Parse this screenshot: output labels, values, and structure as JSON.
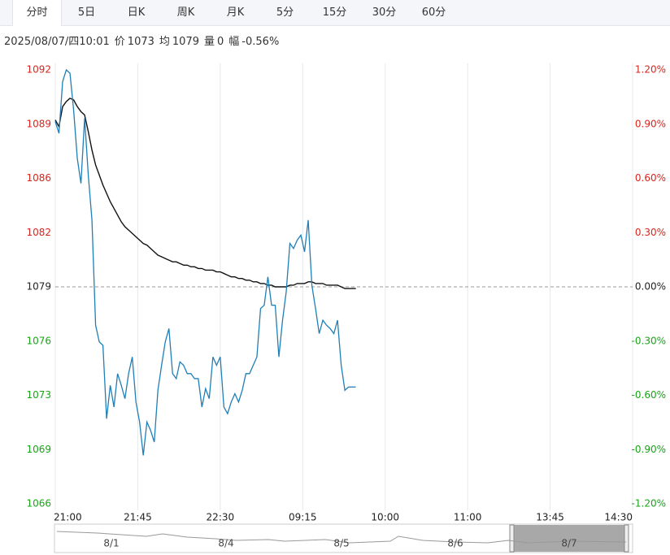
{
  "tabs": [
    "分时",
    "5日",
    "日K",
    "周K",
    "月K",
    "5分",
    "15分",
    "30分",
    "60分"
  ],
  "info": {
    "time": "2025/08/07/四10:01",
    "items": [
      {
        "label": "价",
        "value": 1073
      },
      {
        "label": "均",
        "value": 1079
      },
      {
        "label": "量",
        "value": 0
      },
      {
        "label": "幅",
        "value": "-0.56%"
      }
    ]
  },
  "chart_data": {
    "type": "line",
    "x": [
      0,
      2,
      4,
      6,
      8,
      10,
      12,
      14,
      16,
      18,
      20,
      22,
      24,
      26,
      28,
      30,
      32,
      34,
      36,
      38,
      40,
      42,
      44,
      46,
      48,
      50,
      52,
      54,
      56,
      58,
      60,
      62,
      64,
      66,
      68,
      70,
      72,
      74,
      76,
      78,
      80,
      82,
      84,
      86,
      88,
      90,
      92,
      94,
      96,
      98,
      100,
      102,
      104,
      106,
      108,
      110,
      112,
      114,
      116,
      118,
      120,
      122,
      124,
      126,
      128,
      130,
      132,
      134,
      136,
      138,
      140,
      142,
      144,
      146,
      148,
      150,
      152,
      154,
      156,
      158,
      160,
      162,
      164
    ],
    "series": [
      {
        "color": "#1f7fb6",
        "values": [
          1088.9,
          1088.2,
          1091.3,
          1092,
          1091.8,
          1089.6,
          1086.7,
          1085.2,
          1089.1,
          1085.7,
          1083,
          1076.7,
          1075.7,
          1075.5,
          1071.1,
          1073.1,
          1071.8,
          1073.8,
          1073.1,
          1072.3,
          1073.8,
          1074.8,
          1072.1,
          1070.9,
          1068.9,
          1070.9,
          1070.4,
          1069.7,
          1072.8,
          1074.3,
          1075.7,
          1076.5,
          1073.8,
          1073.5,
          1074.5,
          1074.3,
          1073.8,
          1073.8,
          1073.5,
          1073.5,
          1071.8,
          1072.9,
          1072.3,
          1074.8,
          1074.3,
          1074.8,
          1071.8,
          1071.4,
          1072.1,
          1072.6,
          1072.1,
          1072.8,
          1073.8,
          1073.8,
          1074.3,
          1074.8,
          1077.7,
          1077.9,
          1079.6,
          1077.9,
          1077.9,
          1074.8,
          1077,
          1078.7,
          1081.6,
          1081.3,
          1081.8,
          1082.1,
          1081.1,
          1083,
          1079.1,
          1077.7,
          1076.2,
          1077,
          1076.7,
          1076.5,
          1076.2,
          1077,
          1074.3,
          1072.8,
          1073,
          1073,
          1073
        ]
      },
      {
        "color": "#111111",
        "values": [
          1089,
          1088.6,
          1089.8,
          1090.1,
          1090.3,
          1090.2,
          1089.8,
          1089.5,
          1089.3,
          1088.3,
          1087.2,
          1086.3,
          1085.7,
          1085.1,
          1084.6,
          1084.1,
          1083.7,
          1083.3,
          1082.9,
          1082.6,
          1082.4,
          1082.2,
          1082,
          1081.8,
          1081.6,
          1081.5,
          1081.3,
          1081.1,
          1080.9,
          1080.8,
          1080.7,
          1080.6,
          1080.5,
          1080.5,
          1080.4,
          1080.3,
          1080.3,
          1080.2,
          1080.2,
          1080.1,
          1080.1,
          1080,
          1080,
          1080,
          1079.9,
          1079.9,
          1079.8,
          1079.7,
          1079.6,
          1079.6,
          1079.5,
          1079.5,
          1079.4,
          1079.4,
          1079.3,
          1079.3,
          1079.2,
          1079.2,
          1079.1,
          1079.1,
          1079,
          1079,
          1079,
          1079,
          1079.1,
          1079.1,
          1079.2,
          1079.2,
          1079.2,
          1079.3,
          1079.3,
          1079.2,
          1079.2,
          1079.2,
          1079.1,
          1079.1,
          1079.1,
          1079.1,
          1079,
          1078.9,
          1078.9,
          1078.9,
          1078.9
        ]
      }
    ],
    "xlim": [
      0,
      315
    ],
    "xticks": [
      {
        "value": 0,
        "label": "21:00"
      },
      {
        "value": 45,
        "label": "21:45"
      },
      {
        "value": 90,
        "label": "22:30"
      },
      {
        "value": 135,
        "label": "09:15"
      },
      {
        "value": 180,
        "label": "10:00"
      },
      {
        "value": 225,
        "label": "11:00"
      },
      {
        "value": 270,
        "label": "13:45"
      },
      {
        "value": 315,
        "label": "14:30"
      }
    ],
    "ylim": [
      1066,
      1092
    ],
    "yticks": [
      1092,
      {
        "value": 1088.75,
        "label": "1089"
      },
      {
        "value": 1085.5,
        "label": "1086"
      },
      {
        "value": 1082.25,
        "label": "1082"
      },
      1079,
      {
        "value": 1075.75,
        "label": "1076"
      },
      {
        "value": 1072.5,
        "label": "1073"
      },
      {
        "value": 1069.25,
        "label": "1069"
      },
      1066
    ],
    "y2lim": [
      -1.2,
      1.2
    ],
    "y2ticks": [
      {
        "value": 1.2,
        "label": "1.20%"
      },
      {
        "value": 0.9,
        "label": "0.90%"
      },
      {
        "value": 0.6,
        "label": "0.60%"
      },
      {
        "value": 0.3,
        "label": "0.30%"
      },
      {
        "value": 0,
        "label": "0.00%"
      },
      {
        "value": -0.3,
        "label": "-0.30%"
      },
      {
        "value": -0.6,
        "label": "-0.60%"
      },
      {
        "value": -0.9,
        "label": "-0.90%"
      },
      {
        "value": -1.2,
        "label": "-1.20%"
      }
    ],
    "up_color": "#d9251d",
    "down_color": "#18a418",
    "flat_color": "#222222",
    "grid": true
  },
  "navigator": {
    "labels": [
      "8/1",
      "8/4",
      "8/5",
      "8/6",
      "8/7"
    ]
  }
}
